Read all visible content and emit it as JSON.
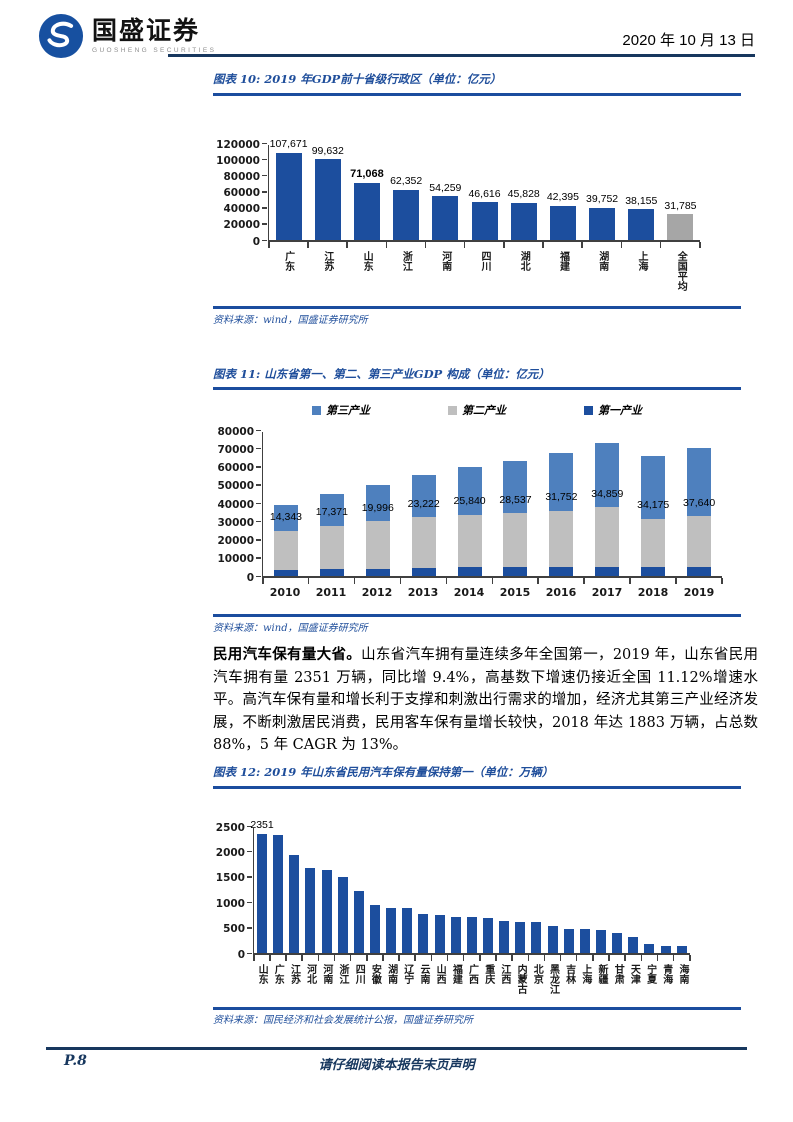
{
  "header": {
    "brand_cn": "国盛证券",
    "brand_en": "GUOSHENG SECURITIES",
    "date": "2020 年 10 月 13 日"
  },
  "paragraph": {
    "lead": "民用汽车保有量大省。",
    "body": "山东省汽车拥有量连续多年全国第一，2019 年，山东省民用汽车拥有量 2351 万辆，同比增 9.4%，高基数下增速仍接近全国 11.12%增速水平。高汽车保有量和增长利于支撑和刺激出行需求的增加，经济尤其第三产业经济发展，不断刺激居民消费，民用客车保有量增长较快，2018 年达 1883 万辆，占总数 88%，5 年 CAGR 为 13%。"
  },
  "footer": {
    "page_no": "P.8",
    "disclaimer": "请仔细阅读本报告末页声明"
  },
  "chart_data": [
    {
      "id": "fig10",
      "type": "bar",
      "title": "图表 10:  2019 年GDP前十省级行政区（单位：亿元）",
      "source": "资料来源：wind，国盛证券研究所",
      "categories": [
        "广东",
        "江苏",
        "山东",
        "浙江",
        "河南",
        "四川",
        "湖北",
        "福建",
        "湖南",
        "上海",
        "全国平均"
      ],
      "values": [
        107671,
        99632,
        71068,
        62352,
        54259,
        46616,
        45828,
        42395,
        39752,
        38155,
        31785
      ],
      "labels": [
        "107,671",
        "99,632",
        "71,068",
        "62,352",
        "54,259",
        "46,616",
        "45,828",
        "42,395",
        "39,752",
        "38,155",
        "31,785"
      ],
      "bold_label_index": 2,
      "bar_color": "#1C4E9E",
      "bar_color_overrides": {
        "10": "#A6A6A6"
      },
      "ylim": [
        0,
        120000
      ],
      "yticks": [
        0,
        20000,
        40000,
        60000,
        80000,
        100000,
        120000
      ],
      "xlabels_vertical": true,
      "grid": false,
      "legend_position": "none"
    },
    {
      "id": "fig11",
      "type": "stacked-bar",
      "title": "图表 11:  山东省第一、第二、第三产业GDP 构成（单位：亿元）",
      "source": "资料来源：wind，国盛证券研究所",
      "categories": [
        "2010",
        "2011",
        "2012",
        "2013",
        "2014",
        "2015",
        "2016",
        "2017",
        "2018",
        "2019"
      ],
      "legend": [
        {
          "label": "第三产业",
          "color": "#4E80BE"
        },
        {
          "label": "第二产业",
          "color": "#BFBFBF"
        },
        {
          "label": "第一产业",
          "color": "#1C4E9E"
        }
      ],
      "series": [
        {
          "name": "第一产业",
          "color": "#1C4E9E",
          "values": [
            3400,
            3700,
            4100,
            4500,
            4900,
            5000,
            4900,
            4900,
            5000,
            5200
          ],
          "estimated": true
        },
        {
          "name": "第二产业",
          "color": "#BFBFBF",
          "values": [
            21300,
            23900,
            25800,
            27700,
            28800,
            29500,
            31000,
            32900,
            26400,
            27500
          ],
          "estimated": true
        },
        {
          "name": "第三产业",
          "color": "#4E80BE",
          "values": [
            14343,
            17371,
            19996,
            23222,
            25840,
            28537,
            31752,
            34859,
            34175,
            37640
          ],
          "labels": [
            "14,343",
            "17,371",
            "19,996",
            "23,222",
            "25,840",
            "28,537",
            "31,752",
            "34,859",
            "34,175",
            "37,640"
          ]
        }
      ],
      "ylim": [
        0,
        80000
      ],
      "yticks": [
        0,
        10000,
        20000,
        30000,
        40000,
        50000,
        60000,
        70000,
        80000
      ],
      "xlabels_vertical": false,
      "grid": false,
      "legend_position": "top"
    },
    {
      "id": "fig12",
      "type": "bar",
      "title": "图表 12:  2019 年山东省民用汽车保有量保持第一（单位：万辆）",
      "source": "资料来源：国民经济和社会发展统计公报，国盛证券研究所",
      "categories": [
        "山东",
        "广东",
        "江苏",
        "河北",
        "河南",
        "浙江",
        "四川",
        "安徽",
        "湖南",
        "辽宁",
        "云南",
        "山西",
        "福建",
        "广西",
        "重庆",
        "江西",
        "内蒙古",
        "北京",
        "黑龙江",
        "吉林",
        "上海",
        "新疆",
        "甘肃",
        "天津",
        "宁夏",
        "青海",
        "海南"
      ],
      "values": [
        2351,
        2327,
        1932,
        1680,
        1640,
        1505,
        1220,
        940,
        895,
        890,
        770,
        740,
        710,
        700,
        680,
        630,
        615,
        610,
        540,
        475,
        465,
        460,
        385,
        320,
        180,
        140,
        140
      ],
      "labels": [
        "2351"
      ],
      "bar_color": "#1C4E9E",
      "ylim": [
        0,
        2500
      ],
      "yticks": [
        0,
        500,
        1000,
        1500,
        2000,
        2500
      ],
      "xlabels_vertical": true,
      "grid": false,
      "legend_position": "none"
    }
  ]
}
